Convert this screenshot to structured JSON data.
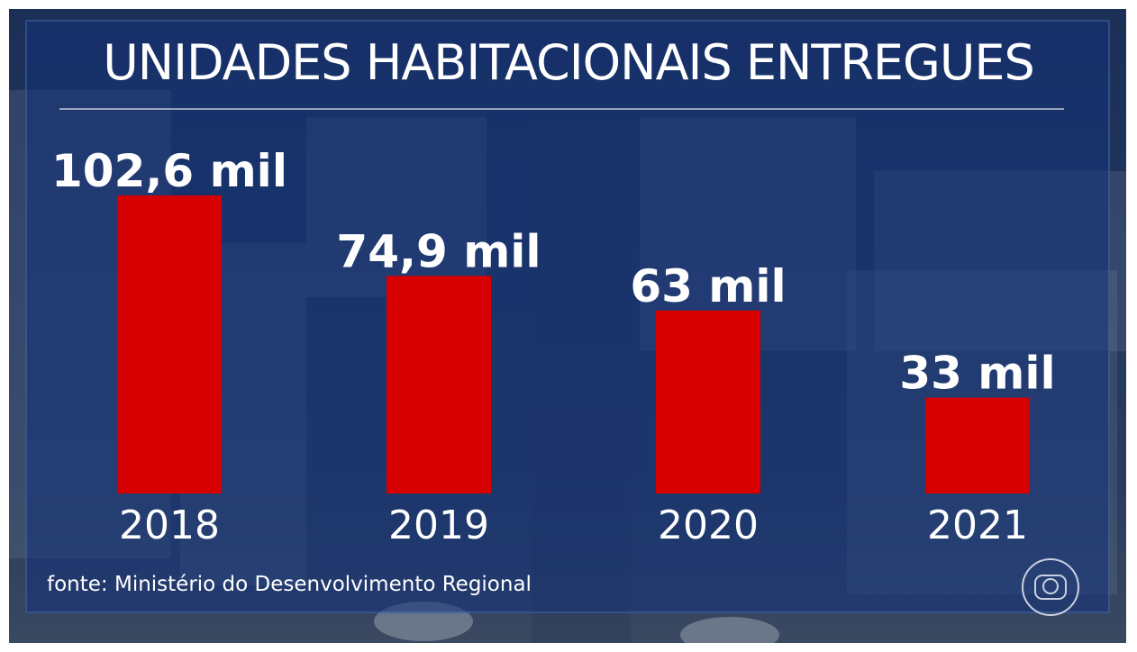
{
  "source_note": "fonte: Ministério do Desenvolvimento Regional",
  "colors": {
    "bar": "#d60000",
    "text": "#ffffff",
    "panel": "#163270"
  },
  "chart_data": {
    "type": "bar",
    "title": "UNIDADES HABITACIONAIS ENTREGUES",
    "categories": [
      "2018",
      "2019",
      "2020",
      "2021"
    ],
    "values": [
      102.6,
      74.9,
      63,
      33
    ],
    "value_labels": [
      "102,6 mil",
      "74,9 mil",
      "63 mil",
      "33 mil"
    ],
    "unit": "mil",
    "xlabel": "",
    "ylabel": "",
    "ylim": [
      0,
      102.6
    ],
    "grid": false,
    "legend": "none"
  }
}
